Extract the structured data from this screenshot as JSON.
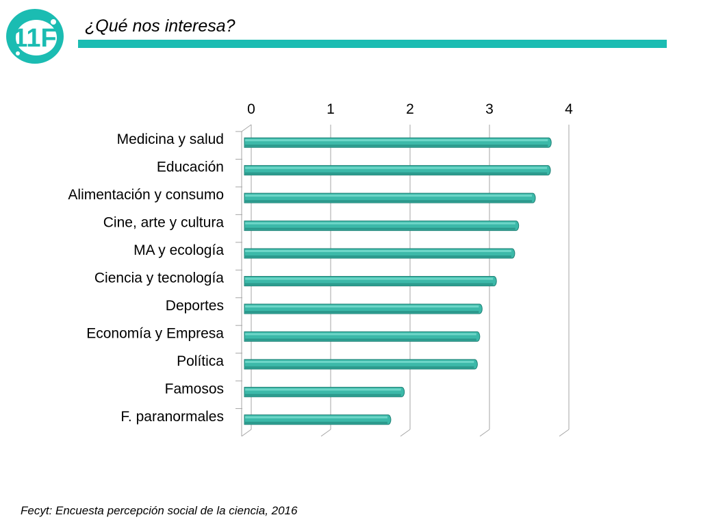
{
  "header": {
    "logo_text": "11F",
    "title": "¿Qué nos interesa?"
  },
  "footer": {
    "source": "Fecyt: Encuesta percepción social de la ciencia, 2016"
  },
  "colors": {
    "accent": "#1bbcb2",
    "bar": "#3cb9a9",
    "bar_dark": "#1f7f74",
    "bar_light": "#7fe0d3",
    "grid": "#a6a6a6"
  },
  "chart_data": {
    "type": "bar",
    "orientation": "horizontal",
    "categories": [
      "Medicina y salud",
      "Educación",
      "Alimentación y consumo",
      "Cine, arte y cultura",
      "MA y ecología",
      "Ciencia y tecnología",
      "Deportes",
      "Economía y Empresa",
      "Política",
      "Famosos",
      "F. paranormales"
    ],
    "values": [
      3.83,
      3.82,
      3.63,
      3.42,
      3.37,
      3.14,
      2.96,
      2.93,
      2.9,
      1.98,
      1.81
    ],
    "xlim": [
      0,
      4
    ],
    "xticks": [
      "0",
      "1",
      "2",
      "3",
      "4"
    ],
    "x_axis_position": "top",
    "grid": true
  }
}
